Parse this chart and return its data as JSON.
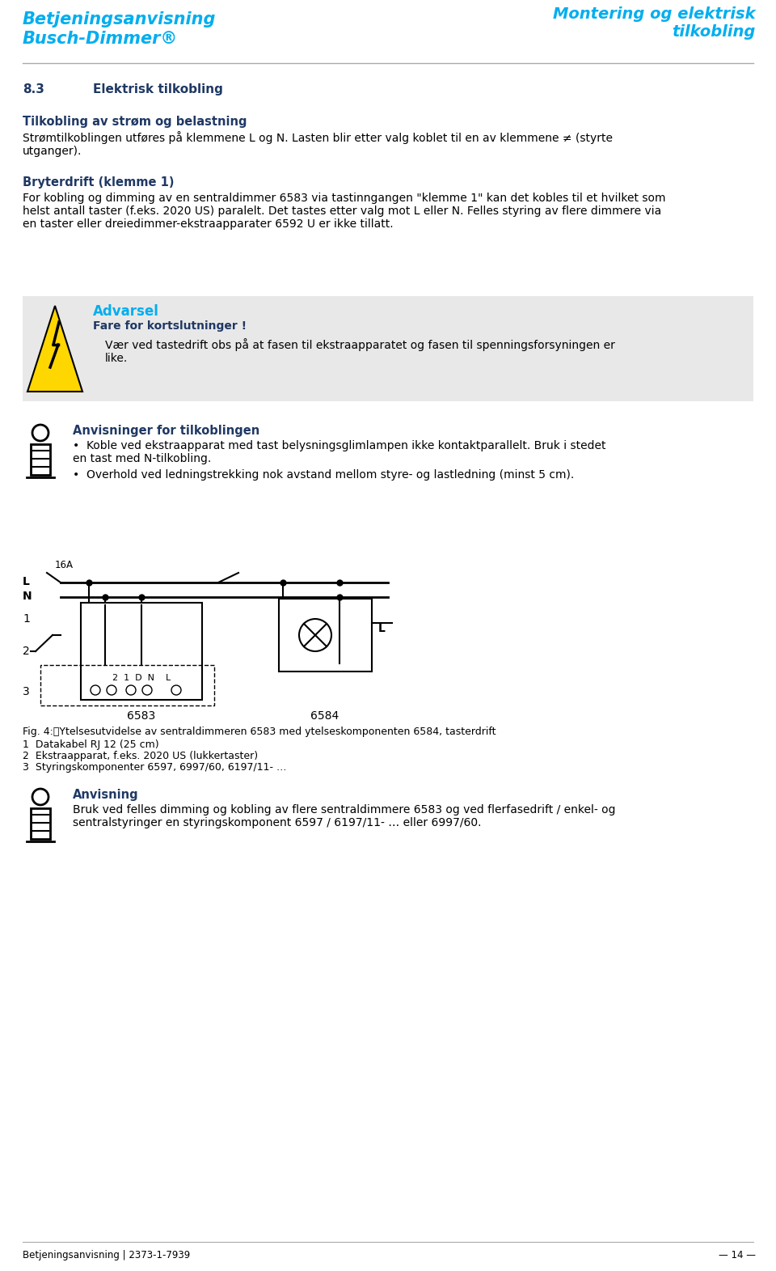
{
  "header_left_line1": "Betjeningsanvisning",
  "header_left_line2": "Busch-Dimmer®",
  "header_right_line1": "Montering og elektrisk",
  "header_right_line2": "tilkobling",
  "header_color": "#00AEEF",
  "section_number": "8.3",
  "section_title": "Elektrisk tilkobling",
  "section_title_color": "#1F3864",
  "subsection1_title": "Tilkobling av strøm og belastning",
  "subsection1_color": "#1F3864",
  "subsection2_title": "Bryterdrift (klemme 1)",
  "subsection2_color": "#1F3864",
  "warning_title": "Advarsel",
  "warning_title_color": "#00AEEF",
  "warning_subtitle": "Fare for kortslutninger !",
  "warning_subtitle_color": "#1F3864",
  "warning_text": "Vær ved tastedrift obs på at fasen til ekstraapparatet og fasen til spenningsforsyningen er\nlike.",
  "warning_bg": "#E8E8E8",
  "anvisning1_title": "Anvisninger for tilkoblingen",
  "anvisning1_title_color": "#1F3864",
  "anvisning1_bullet1": "Koble ved ekstraapparat med tast belysningsglimlampen ikke kontaktparallelt. Bruk i stedet\nen tast med N-tilkobling.",
  "anvisning1_bullet2": "Overhold ved ledningstrekking nok avstand mellom styre- og lastledning (minst 5 cm).",
  "fig_caption": "Fig. 4:\tYtelsesutvidelse av sentraldimmeren 6583 med ytelseskomponenten 6584, tasterdrift",
  "fig_label1": "1  Datakabel RJ 12 (25 cm)",
  "fig_label2": "2  Ekstraapparat, f.eks. 2020 US (lukkertaster)",
  "fig_label3": "3  Styringskomponenter 6597, 6997/60, 6197/11- …",
  "anvisning2_title": "Anvisning",
  "anvisning2_title_color": "#1F3864",
  "anvisning2_text": "Bruk ved felles dimming og kobling av flere sentraldimmere 6583 og ved flerfasedrift / enkel- og\nsentralstyringer en styringskomponent 6597 / 6197/11- … eller 6997/60.",
  "footer_left": "Betjeningsanvisning | 2373-1-7939",
  "footer_right": "— 14 —",
  "body_color": "#000000",
  "bg_color": "#FFFFFF"
}
